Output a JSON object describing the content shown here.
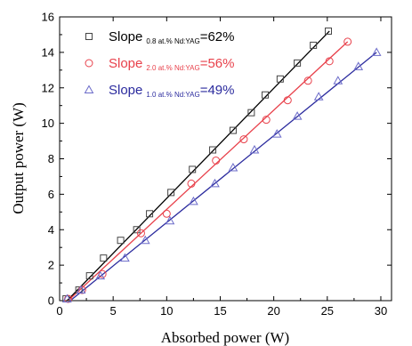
{
  "chart_data": {
    "type": "scatter",
    "xlabel": "Absorbed power (W)",
    "ylabel": "Output power (W)",
    "xlim": [
      0,
      31
    ],
    "ylim": [
      0,
      16
    ],
    "xticks": [
      0,
      5,
      10,
      15,
      20,
      25,
      30
    ],
    "yticks": [
      0,
      2,
      4,
      6,
      8,
      10,
      12,
      14,
      16
    ],
    "xtick_labels": [
      "0",
      "5",
      "10",
      "15",
      "20",
      "25",
      "30"
    ],
    "ytick_labels": [
      "0",
      "2",
      "4",
      "6",
      "8",
      "10",
      "12",
      "14",
      "16"
    ],
    "legend_position": "top-left",
    "grid": false,
    "series": [
      {
        "name": "Slope 0.8 at.% Nd:YAG=62%",
        "legend_main": "Slope",
        "legend_sub": "0.8 at.% Nd:YAG",
        "legend_suffix": "=62%",
        "marker": "square",
        "color": "#444444",
        "line_color": "#000000",
        "x": [
          0.6,
          1.8,
          2.8,
          4.1,
          5.7,
          7.2,
          8.4,
          10.4,
          12.4,
          14.3,
          16.2,
          17.9,
          19.2,
          20.6,
          22.2,
          23.7,
          25.1
        ],
        "y": [
          0.1,
          0.6,
          1.4,
          2.4,
          3.4,
          4.0,
          4.9,
          6.1,
          7.4,
          8.5,
          9.6,
          10.6,
          11.6,
          12.5,
          13.4,
          14.4,
          15.2
        ],
        "fit": [
          [
            0.7,
            0
          ],
          [
            25.2,
            15.2
          ]
        ]
      },
      {
        "name": "Slope 2.0 at.% Nd:YAG=56%",
        "legend_main": "Slope",
        "legend_sub": "2.0 at.% Nd:YAG",
        "legend_suffix": "=56%",
        "marker": "circle",
        "color": "#e8414b",
        "line_color": "#e8414b",
        "x": [
          0.8,
          2.1,
          4.0,
          7.6,
          10.0,
          12.3,
          14.6,
          17.2,
          19.3,
          21.3,
          23.2,
          25.2,
          26.9
        ],
        "y": [
          0.1,
          0.6,
          1.5,
          3.8,
          4.9,
          6.6,
          7.9,
          9.1,
          10.2,
          11.3,
          12.4,
          13.5,
          14.6
        ],
        "fit": [
          [
            0.8,
            0
          ],
          [
            26.9,
            14.6
          ]
        ]
      },
      {
        "name": "Slope 1.0 at.% Nd:YAG=49%",
        "legend_main": "Slope",
        "legend_sub": "1.0 at.% Nd:YAG",
        "legend_suffix": "=49%",
        "marker": "triangle",
        "color": "#6b6bc9",
        "line_color": "#2b2b9e",
        "x": [
          0.7,
          2.0,
          3.8,
          6.1,
          8.0,
          10.3,
          12.5,
          14.5,
          16.2,
          18.2,
          20.3,
          22.2,
          24.2,
          26.0,
          27.9,
          29.6
        ],
        "y": [
          0.1,
          0.6,
          1.4,
          2.4,
          3.4,
          4.5,
          5.6,
          6.6,
          7.5,
          8.5,
          9.4,
          10.4,
          11.5,
          12.4,
          13.2,
          14.0
        ],
        "fit": [
          [
            1.0,
            0
          ],
          [
            29.6,
            14.0
          ]
        ]
      }
    ]
  }
}
